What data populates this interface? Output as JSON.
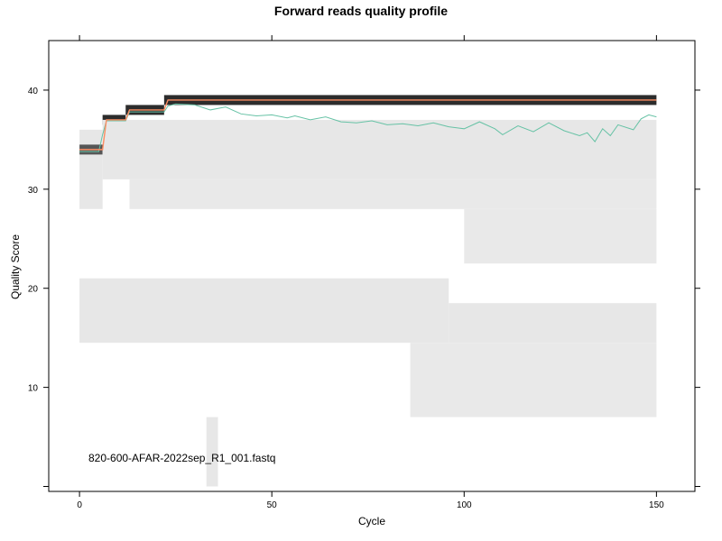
{
  "chart_data": {
    "type": "heatmap",
    "title": "Forward reads quality profile",
    "xlabel": "Cycle",
    "ylabel": "Quality Score",
    "xlim": [
      -8,
      160
    ],
    "ylim": [
      -0.5,
      45
    ],
    "x_ticks": [
      0,
      50,
      100,
      150
    ],
    "y_ticks": [
      10,
      20,
      30,
      40
    ],
    "grid": false,
    "annotation": "820-600-AFAR-2022sep_R1_001.fastq",
    "colors": {
      "heat_dark": "#222222",
      "heat_light": "#f1f1f1",
      "mean_line": "#66c2a5",
      "median_line": "#fc8d62",
      "quartile_line": "#fc8d62"
    },
    "heatmap_blocks": [
      {
        "x": [
          0,
          6
        ],
        "y": [
          28,
          36
        ],
        "intensity": 0.05
      },
      {
        "x": [
          0,
          6
        ],
        "y": [
          33.5,
          34.5
        ],
        "intensity": 0.75
      },
      {
        "x": [
          6,
          12
        ],
        "y": [
          36.5,
          37.5
        ],
        "intensity": 0.95
      },
      {
        "x": [
          12,
          22
        ],
        "y": [
          37.5,
          38.5
        ],
        "intensity": 0.95
      },
      {
        "x": [
          22,
          150
        ],
        "y": [
          38.5,
          39.5
        ],
        "intensity": 0.95
      },
      {
        "x": [
          6,
          150
        ],
        "y": [
          31,
          37
        ],
        "intensity": 0.05
      },
      {
        "x": [
          13,
          150
        ],
        "y": [
          28,
          31
        ],
        "intensity": 0.04
      },
      {
        "x": [
          100,
          150
        ],
        "y": [
          22.5,
          28
        ],
        "intensity": 0.04
      },
      {
        "x": [
          0,
          96
        ],
        "y": [
          14.5,
          21
        ],
        "intensity": 0.05
      },
      {
        "x": [
          96,
          150
        ],
        "y": [
          14.5,
          18.5
        ],
        "intensity": 0.05
      },
      {
        "x": [
          86,
          150
        ],
        "y": [
          7,
          14.5
        ],
        "intensity": 0.04
      },
      {
        "x": [
          33,
          36
        ],
        "y": [
          0,
          7
        ],
        "intensity": 0.05
      }
    ],
    "series": [
      {
        "name": "",
        "role": "mean",
        "x": [
          0,
          5,
          6,
          7,
          12,
          13,
          22,
          23,
          25,
          30,
          34,
          38,
          42,
          46,
          50,
          54,
          56,
          60,
          64,
          68,
          72,
          76,
          80,
          84,
          88,
          92,
          96,
          100,
          104,
          108,
          110,
          114,
          118,
          122,
          126,
          130,
          132,
          134,
          136,
          138,
          140,
          144,
          146,
          148,
          150
        ],
        "y": [
          33.8,
          33.8,
          35.5,
          36.9,
          36.9,
          37.8,
          37.8,
          38.4,
          38.6,
          38.5,
          38.0,
          38.3,
          37.6,
          37.4,
          37.5,
          37.2,
          37.4,
          37.0,
          37.3,
          36.8,
          36.7,
          36.9,
          36.5,
          36.6,
          36.4,
          36.7,
          36.3,
          36.1,
          36.8,
          36.1,
          35.5,
          36.4,
          35.8,
          36.7,
          35.9,
          35.4,
          35.7,
          34.8,
          36.1,
          35.4,
          36.5,
          36.0,
          37.1,
          37.5,
          37.3
        ]
      },
      {
        "name": "",
        "role": "median",
        "x": [
          0,
          6,
          7,
          12,
          13,
          22,
          23,
          150
        ],
        "y": [
          34,
          34,
          37,
          37,
          38,
          38,
          39,
          39
        ]
      }
    ]
  }
}
